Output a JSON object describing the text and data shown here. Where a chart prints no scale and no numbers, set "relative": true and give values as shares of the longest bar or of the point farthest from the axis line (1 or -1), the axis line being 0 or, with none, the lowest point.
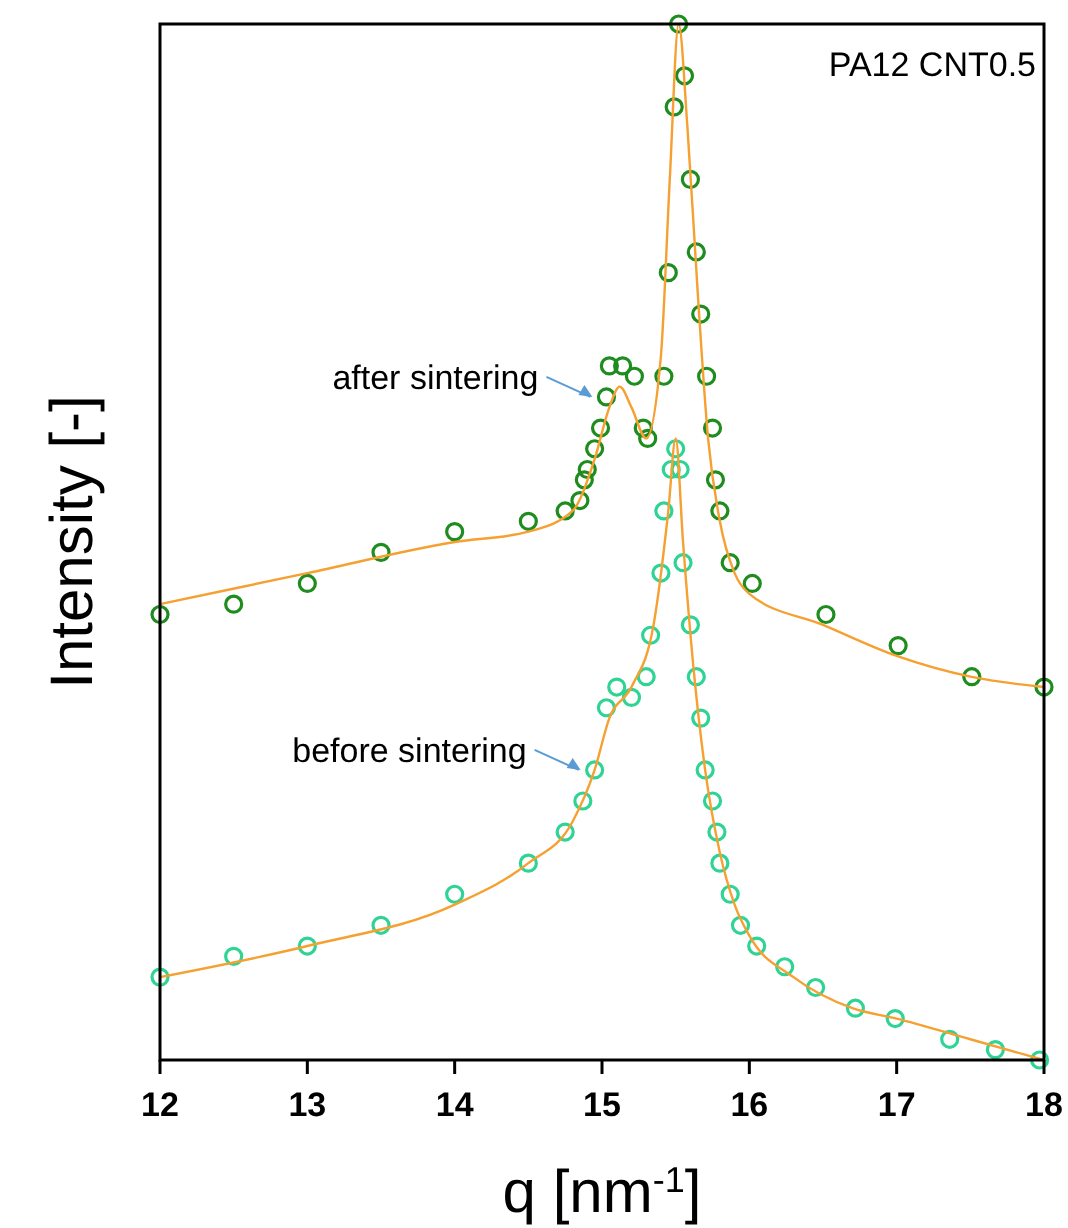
{
  "chart_data": {
    "type": "scatter",
    "xlabel": "q [nm$^{-1}$]",
    "ylabel": "Intensity [-]",
    "relative": true,
    "marker": "circle",
    "grid": false,
    "xlim": [
      12,
      18
    ],
    "xticks": [
      12,
      13,
      14,
      15,
      16,
      17,
      18
    ],
    "annotations": [
      "PA12 CNT0.5"
    ],
    "series": [
      {
        "name": "after sintering",
        "color": "#1e8c1e",
        "x": [
          12.0,
          12.5,
          13.0,
          13.5,
          14.0,
          14.5,
          14.75,
          14.85,
          14.88,
          14.9,
          14.95,
          14.99,
          15.03,
          15.05,
          15.14,
          15.22,
          15.28,
          15.31,
          15.42,
          15.45,
          15.49,
          15.52,
          15.56,
          15.6,
          15.64,
          15.67,
          15.71,
          15.75,
          15.77,
          15.8,
          15.87,
          16.02,
          16.52,
          17.01,
          17.51,
          18.0
        ],
        "values": [
          0.43,
          0.44,
          0.46,
          0.49,
          0.51,
          0.52,
          0.53,
          0.54,
          0.56,
          0.57,
          0.59,
          0.61,
          0.64,
          0.67,
          0.67,
          0.66,
          0.61,
          0.6,
          0.66,
          0.76,
          0.92,
          1,
          0.95,
          0.85,
          0.78,
          0.72,
          0.66,
          0.61,
          0.56,
          0.53,
          0.48,
          0.46,
          0.43,
          0.4,
          0.37,
          0.36
        ]
      },
      {
        "name": "before sintering",
        "color": "#2fd495",
        "x": [
          12.0,
          12.5,
          13.0,
          13.5,
          14.0,
          14.5,
          14.75,
          14.87,
          14.95,
          15.03,
          15.1,
          15.2,
          15.3,
          15.33,
          15.4,
          15.42,
          15.47,
          15.5,
          15.53,
          15.55,
          15.6,
          15.64,
          15.67,
          15.7,
          15.75,
          15.78,
          15.8,
          15.87,
          15.94,
          16.05,
          16.24,
          16.45,
          16.72,
          16.99,
          17.36,
          17.67,
          17.97
        ],
        "values": [
          0.08,
          0.1,
          0.11,
          0.13,
          0.16,
          0.19,
          0.22,
          0.25,
          0.28,
          0.34,
          0.36,
          0.35,
          0.37,
          0.41,
          0.47,
          0.53,
          0.57,
          0.59,
          0.57,
          0.48,
          0.42,
          0.37,
          0.33,
          0.28,
          0.25,
          0.22,
          0.19,
          0.16,
          0.13,
          0.11,
          0.09,
          0.07,
          0.05,
          0.04,
          0.02,
          0.01,
          0.0
        ]
      },
      {
        "type": "line",
        "marker": "none",
        "color": "#f5a030",
        "x": [
          12.0,
          13.0,
          14.0,
          14.5,
          14.8,
          14.95,
          15.05,
          15.12,
          15.2,
          15.3,
          15.4,
          15.46,
          15.52,
          15.58,
          15.65,
          15.72,
          15.8,
          15.9,
          16.0,
          16.5,
          17.0,
          17.5,
          18.0
        ],
        "values": [
          0.44,
          0.47,
          0.5,
          0.51,
          0.53,
          0.58,
          0.63,
          0.65,
          0.63,
          0.6,
          0.68,
          0.85,
          1,
          0.9,
          0.74,
          0.6,
          0.52,
          0.47,
          0.45,
          0.42,
          0.39,
          0.37,
          0.36
        ]
      },
      {
        "type": "line",
        "marker": "none",
        "color": "#f5a030",
        "x": [
          12.0,
          13.0,
          14.0,
          14.5,
          14.8,
          14.95,
          15.05,
          15.2,
          15.35,
          15.45,
          15.5,
          15.55,
          15.62,
          15.7,
          15.8,
          15.9,
          16.0,
          16.3,
          16.7,
          17.0,
          17.5,
          18.0
        ],
        "values": [
          0.08,
          0.11,
          0.15,
          0.19,
          0.23,
          0.28,
          0.33,
          0.36,
          0.42,
          0.53,
          0.6,
          0.5,
          0.38,
          0.28,
          0.2,
          0.15,
          0.12,
          0.08,
          0.05,
          0.04,
          0.02,
          0.0
        ]
      }
    ]
  }
}
